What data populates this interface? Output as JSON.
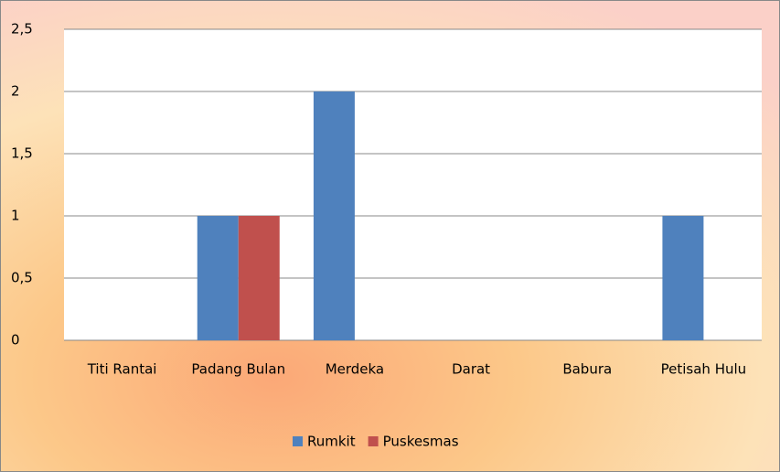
{
  "chart_data": {
    "type": "bar",
    "categories": [
      "Titi Rantai",
      "Padang Bulan",
      "Merdeka",
      "Darat",
      "Babura",
      "Petisah Hulu"
    ],
    "series": [
      {
        "name": "Rumkit",
        "color": "#4f81bd",
        "values": [
          0,
          1,
          2,
          0,
          0,
          1
        ]
      },
      {
        "name": "Puskesmas",
        "color": "#c0504d",
        "values": [
          0,
          1,
          0,
          0,
          0,
          0
        ]
      }
    ],
    "ylim": [
      0,
      2.5
    ],
    "yticks": [
      0,
      {
        "value": 0.5,
        "label": "0,5"
      },
      1,
      {
        "value": 1.5,
        "label": "1,5"
      },
      2,
      {
        "value": 2.5,
        "label": "2,5"
      }
    ],
    "grid": true,
    "legend": "bottom"
  }
}
